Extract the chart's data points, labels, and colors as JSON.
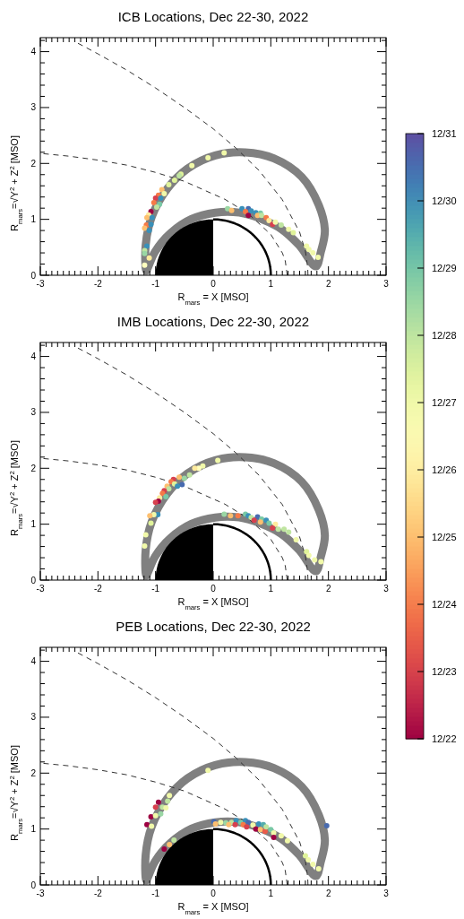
{
  "chart_data": [
    {
      "type": "scatter",
      "title": "ICB Locations, Dec 22-30, 2022",
      "xlabel": "R$_{mars}$ = X [MSO]",
      "ylabel": "R$_{mars}$=√Y$^{2}$ + Z$^{2}$ [MSO]",
      "xlim": [
        -3,
        3
      ],
      "ylim": [
        0,
        4.25
      ],
      "xticks": [
        -3,
        {
          "value": -2.9,
          "label": null
        },
        {
          "value": -2.8,
          "label": null
        },
        {
          "value": -2.7,
          "label": null
        },
        {
          "value": -2.6,
          "label": null
        },
        {
          "value": -2.5,
          "label": null
        },
        {
          "value": -2.4,
          "label": null
        },
        {
          "value": -2.3,
          "label": null
        },
        {
          "value": -2.2,
          "label": null
        },
        {
          "value": -2.1,
          "label": null
        },
        -2,
        {
          "value": -1.9,
          "label": null
        },
        {
          "value": -1.8,
          "label": null
        },
        {
          "value": -1.7,
          "label": null
        },
        {
          "value": -1.6,
          "label": null
        },
        {
          "value": -1.5,
          "label": null
        },
        {
          "value": -1.4,
          "label": null
        },
        {
          "value": -1.3,
          "label": null
        },
        {
          "value": -1.2,
          "label": null
        },
        {
          "value": -1.1,
          "label": null
        },
        -1,
        {
          "value": -0.9,
          "label": null
        },
        {
          "value": -0.8,
          "label": null
        },
        {
          "value": -0.7,
          "label": null
        },
        {
          "value": -0.6,
          "label": null
        },
        {
          "value": -0.5,
          "label": null
        },
        {
          "value": -0.4,
          "label": null
        },
        {
          "value": -0.3,
          "label": null
        },
        {
          "value": -0.2,
          "label": null
        },
        {
          "value": -0.1,
          "label": null
        },
        0,
        {
          "value": 0.1,
          "label": null
        },
        {
          "value": 0.2,
          "label": null
        },
        {
          "value": 0.3,
          "label": null
        },
        {
          "value": 0.4,
          "label": null
        },
        {
          "value": 0.5,
          "label": null
        },
        {
          "value": 0.6,
          "label": null
        },
        {
          "value": 0.7,
          "label": null
        },
        {
          "value": 0.8,
          "label": null
        },
        {
          "value": 0.9,
          "label": null
        },
        1,
        {
          "value": 1.1,
          "label": null
        },
        {
          "value": 1.2,
          "label": null
        },
        {
          "value": 1.3,
          "label": null
        },
        {
          "value": 1.4,
          "label": null
        },
        {
          "value": 1.5,
          "label": null
        },
        {
          "value": 1.6,
          "label": null
        },
        {
          "value": 1.7,
          "label": null
        },
        {
          "value": 1.8,
          "label": null
        },
        {
          "value": 1.9,
          "label": null
        },
        2,
        {
          "value": 2.1,
          "label": null
        },
        {
          "value": 2.2,
          "label": null
        },
        {
          "value": 2.3,
          "label": null
        },
        {
          "value": 2.4,
          "label": null
        },
        {
          "value": 2.5,
          "label": null
        },
        {
          "value": 2.6,
          "label": null
        },
        {
          "value": 2.7,
          "label": null
        },
        {
          "value": 2.8,
          "label": null
        },
        {
          "value": 2.9,
          "label": null
        },
        3
      ],
      "yticks": [
        0,
        {
          "value": 0.2,
          "label": null
        },
        {
          "value": 0.4,
          "label": null
        },
        {
          "value": 0.6,
          "label": null
        },
        {
          "value": 0.8,
          "label": null
        },
        1,
        {
          "value": 1.2,
          "label": null
        },
        {
          "value": 1.4,
          "label": null
        },
        {
          "value": 1.6,
          "label": null
        },
        {
          "value": 1.8,
          "label": null
        },
        2,
        {
          "value": 2.2,
          "label": null
        },
        {
          "value": 2.4,
          "label": null
        },
        {
          "value": 2.6,
          "label": null
        },
        {
          "value": 2.8,
          "label": null
        },
        3,
        {
          "value": 3.2,
          "label": null
        },
        {
          "value": 3.4,
          "label": null
        },
        {
          "value": 3.6,
          "label": null
        },
        {
          "value": 3.8,
          "label": null
        },
        4,
        {
          "value": 4.2,
          "label": null
        }
      ],
      "clim": [
        22,
        31
      ],
      "cticks": [
        {
          "value": 22,
          "label": "12/22"
        },
        {
          "value": 23,
          "label": "12/23"
        },
        {
          "value": 24,
          "label": "12/24"
        },
        {
          "value": 25,
          "label": "12/25"
        },
        {
          "value": 26,
          "label": "12/26"
        },
        {
          "value": 27,
          "label": "12/27"
        },
        {
          "value": 28,
          "label": "12/28"
        },
        {
          "value": 29,
          "label": "12/29"
        },
        {
          "value": 30,
          "label": "12/30"
        },
        {
          "value": 31,
          "label": "12/31"
        }
      ],
      "series": [
        {
          "type": "line",
          "color": "#333333",
          "line_style": "dashed",
          "x": [
            1.645,
            1.64,
            1.6,
            1.5,
            1.2,
            0.8,
            0.4,
            0,
            -0.5,
            -1,
            -1.5,
            -2,
            -2.4
          ],
          "values": [
            0,
            0.14,
            0.43,
            0.77,
            1.35,
            1.87,
            2.27,
            2.62,
            3.0,
            3.35,
            3.67,
            3.96,
            4.18
          ]
        },
        {
          "type": "line",
          "color": "#333333",
          "line_style": "dashed",
          "x": [
            1.285,
            1.25,
            1.2,
            1.0,
            0.6,
            0.2,
            -0.5,
            -1,
            -1.5,
            -2,
            -2.5,
            -3
          ],
          "values": [
            0,
            0.26,
            0.4,
            0.73,
            1.11,
            1.36,
            1.68,
            1.84,
            1.97,
            2.06,
            2.13,
            2.18
          ]
        },
        {
          "marker": "circle",
          "x": [
            0.19,
            -0.09,
            -0.37,
            -0.56,
            -0.59,
            -0.67,
            -0.77,
            -0.89,
            -0.85,
            -0.95,
            -1.0,
            -0.91,
            -1.03,
            -0.93,
            -0.98,
            -1.08,
            -1.12,
            -1.15,
            -1.06,
            -1.16,
            -1.19,
            -1.08,
            -1.11,
            -1.15,
            -1.19,
            -1.19,
            -1.11,
            -1.19,
            0.25,
            0.32,
            0.5,
            0.61,
            0.66,
            0.56,
            0.74,
            0.82,
            0.77,
            0.61,
            0.84,
            0.92,
            0.97,
            1.03,
            1.08,
            1.18,
            1.31,
            1.39,
            1.62,
            1.66,
            1.73,
            1.82
          ],
          "values": [
            2.19,
            2.1,
            1.96,
            1.81,
            1.78,
            1.7,
            1.62,
            1.53,
            1.46,
            1.43,
            1.38,
            1.38,
            1.3,
            1.27,
            1.22,
            1.14,
            1.08,
            1.03,
            1.03,
            0.9,
            0.84,
            0.91,
            0.8,
            0.52,
            0.44,
            0.39,
            0.31,
            0.18,
            1.19,
            1.16,
            1.19,
            1.19,
            1.15,
            1.14,
            1.12,
            1.11,
            1.07,
            1.07,
            1.07,
            1.03,
            0.98,
            0.91,
            0.95,
            0.9,
            0.82,
            0.76,
            0.52,
            0.46,
            0.4,
            0.32
          ],
          "colors": [
            "#f1f9a9",
            "#f1f9a9",
            "#f1f9a9",
            "#e0f39a",
            "#bfe5a0",
            "#e0f39a",
            "#e0f39a",
            "#fdbf6f",
            "#f1f9a9",
            "#f67a47",
            "#d7404e",
            "#3990b9",
            "#f67a47",
            "#79c9a5",
            "#bfe5a0",
            "#9e0142",
            "#feeb9d",
            "#fdbf6f",
            "#3990b9",
            "#f67a47",
            "#fdbf6f",
            "#3990b9",
            "#3990b9",
            "#3990b9",
            "#bfe5a0",
            "#9ad7a4",
            "#feeb9d",
            "#ffffbf",
            "#9ad7a4",
            "#fdbf6f",
            "#3990b9",
            "#486bb0",
            "#3990b9",
            "#f67a47",
            "#3990b9",
            "#79c9a5",
            "#fdbf6f",
            "#9e0142",
            "#bfe5a0",
            "#f67a47",
            "#feeb9d",
            "#d7404e",
            "#f1f9a9",
            "#bfe5a0",
            "#f1f9a9",
            "#e0f39a",
            "#f1f9a9",
            "#f1f9a9",
            "#f1f9a9",
            "#f1f9a9"
          ]
        }
      ]
    },
    {
      "type": "scatter",
      "title": "IMB Locations, Dec 22-30, 2022",
      "xlabel": "R$_{mars}$ = X [MSO]",
      "ylabel": "R$_{mars}$=√Y$^{2}$ + Z$^{2}$ [MSO]",
      "xlim": [
        -3,
        3
      ],
      "ylim": [
        0,
        4.25
      ],
      "xticks": [
        -3,
        {
          "value": -2.9,
          "label": null
        },
        {
          "value": -2.8,
          "label": null
        },
        {
          "value": -2.7,
          "label": null
        },
        {
          "value": -2.6,
          "label": null
        },
        {
          "value": -2.5,
          "label": null
        },
        {
          "value": -2.4,
          "label": null
        },
        {
          "value": -2.3,
          "label": null
        },
        {
          "value": -2.2,
          "label": null
        },
        {
          "value": -2.1,
          "label": null
        },
        -2,
        {
          "value": -1.9,
          "label": null
        },
        {
          "value": -1.8,
          "label": null
        },
        {
          "value": -1.7,
          "label": null
        },
        {
          "value": -1.6,
          "label": null
        },
        {
          "value": -1.5,
          "label": null
        },
        {
          "value": -1.4,
          "label": null
        },
        {
          "value": -1.3,
          "label": null
        },
        {
          "value": -1.2,
          "label": null
        },
        {
          "value": -1.1,
          "label": null
        },
        -1,
        {
          "value": -0.9,
          "label": null
        },
        {
          "value": -0.8,
          "label": null
        },
        {
          "value": -0.7,
          "label": null
        },
        {
          "value": -0.6,
          "label": null
        },
        {
          "value": -0.5,
          "label": null
        },
        {
          "value": -0.4,
          "label": null
        },
        {
          "value": -0.3,
          "label": null
        },
        {
          "value": -0.2,
          "label": null
        },
        {
          "value": -0.1,
          "label": null
        },
        0,
        {
          "value": 0.1,
          "label": null
        },
        {
          "value": 0.2,
          "label": null
        },
        {
          "value": 0.3,
          "label": null
        },
        {
          "value": 0.4,
          "label": null
        },
        {
          "value": 0.5,
          "label": null
        },
        {
          "value": 0.6,
          "label": null
        },
        {
          "value": 0.7,
          "label": null
        },
        {
          "value": 0.8,
          "label": null
        },
        {
          "value": 0.9,
          "label": null
        },
        1,
        {
          "value": 1.1,
          "label": null
        },
        {
          "value": 1.2,
          "label": null
        },
        {
          "value": 1.3,
          "label": null
        },
        {
          "value": 1.4,
          "label": null
        },
        {
          "value": 1.5,
          "label": null
        },
        {
          "value": 1.6,
          "label": null
        },
        {
          "value": 1.7,
          "label": null
        },
        {
          "value": 1.8,
          "label": null
        },
        {
          "value": 1.9,
          "label": null
        },
        2,
        {
          "value": 2.1,
          "label": null
        },
        {
          "value": 2.2,
          "label": null
        },
        {
          "value": 2.3,
          "label": null
        },
        {
          "value": 2.4,
          "label": null
        },
        {
          "value": 2.5,
          "label": null
        },
        {
          "value": 2.6,
          "label": null
        },
        {
          "value": 2.7,
          "label": null
        },
        {
          "value": 2.8,
          "label": null
        },
        {
          "value": 2.9,
          "label": null
        },
        3
      ],
      "yticks": [
        0,
        {
          "value": 0.2,
          "label": null
        },
        {
          "value": 0.4,
          "label": null
        },
        {
          "value": 0.6,
          "label": null
        },
        {
          "value": 0.8,
          "label": null
        },
        1,
        {
          "value": 1.2,
          "label": null
        },
        {
          "value": 1.4,
          "label": null
        },
        {
          "value": 1.6,
          "label": null
        },
        {
          "value": 1.8,
          "label": null
        },
        2,
        {
          "value": 2.2,
          "label": null
        },
        {
          "value": 2.4,
          "label": null
        },
        {
          "value": 2.6,
          "label": null
        },
        {
          "value": 2.8,
          "label": null
        },
        3,
        {
          "value": 3.2,
          "label": null
        },
        {
          "value": 3.4,
          "label": null
        },
        {
          "value": 3.6,
          "label": null
        },
        {
          "value": 3.8,
          "label": null
        },
        4,
        {
          "value": 4.2,
          "label": null
        }
      ],
      "series": [
        {
          "type": "line",
          "color": "#333333",
          "line_style": "dashed",
          "x": [
            1.645,
            1.64,
            1.6,
            1.5,
            1.2,
            0.8,
            0.4,
            0,
            -0.5,
            -1,
            -1.5,
            -2,
            -2.4
          ],
          "values": [
            0,
            0.14,
            0.43,
            0.77,
            1.35,
            1.87,
            2.27,
            2.62,
            3.0,
            3.35,
            3.67,
            3.96,
            4.18
          ]
        },
        {
          "type": "line",
          "color": "#333333",
          "line_style": "dashed",
          "x": [
            1.285,
            1.25,
            1.2,
            1.0,
            0.6,
            0.2,
            -0.5,
            -1,
            -1.5,
            -2,
            -2.5,
            -3
          ],
          "values": [
            0,
            0.26,
            0.4,
            0.73,
            1.11,
            1.36,
            1.68,
            1.84,
            1.97,
            2.06,
            2.13,
            2.18
          ]
        },
        {
          "marker": "circle",
          "x": [
            0.08,
            -0.18,
            -0.25,
            -0.32,
            -0.41,
            -0.5,
            -0.59,
            -0.69,
            -0.73,
            -0.67,
            -0.54,
            -0.62,
            -0.8,
            -0.77,
            -0.85,
            -0.88,
            -0.82,
            -0.93,
            -0.95,
            -1.0,
            -0.96,
            -1.03,
            -1.1,
            -1.08,
            -1.17,
            -1.19,
            0.19,
            0.3,
            0.43,
            0.56,
            0.61,
            0.66,
            0.77,
            0.84,
            0.92,
            0.71,
            0.82,
            0.97,
            1.08,
            1.03,
            1.13,
            1.23,
            1.31,
            1.44,
            1.62,
            1.66,
            1.76,
            1.87
          ],
          "values": [
            2.14,
            2.04,
            2.0,
            2.0,
            1.88,
            1.82,
            1.84,
            1.8,
            1.76,
            1.72,
            1.71,
            1.68,
            1.68,
            1.63,
            1.6,
            1.55,
            1.49,
            1.47,
            1.41,
            1.39,
            1.17,
            1.17,
            1.15,
            1.02,
            0.81,
            0.61,
            1.18,
            1.15,
            1.15,
            1.18,
            1.15,
            1.12,
            1.13,
            1.09,
            1.07,
            1.07,
            1.04,
            1.02,
            1.0,
            0.93,
            0.91,
            0.91,
            0.86,
            0.72,
            0.51,
            0.44,
            0.36,
            0.33
          ],
          "colors": [
            "#f1f9a9",
            "#f1f9a9",
            "#ffffbf",
            "#feeb9d",
            "#bfe5a0",
            "#9ad7a4",
            "#fdbf6f",
            "#d7404e",
            "#f67a47",
            "#e0f39a",
            "#486bb0",
            "#3990b9",
            "#fdbf6f",
            "#bfe5a0",
            "#d7404e",
            "#f67a47",
            "#79c9a5",
            "#feeb9d",
            "#9e0142",
            "#d7404e",
            "#3990b9",
            "#f1f9a9",
            "#fdbf6f",
            "#e0f39a",
            "#f1f9a9",
            "#f1f9a9",
            "#9ad7a4",
            "#fdbf6f",
            "#f67a47",
            "#79c9a5",
            "#3990b9",
            "#bfe5a0",
            "#486bb0",
            "#79c9a5",
            "#3990b9",
            "#d7404e",
            "#fdbf6f",
            "#79c9a5",
            "#feeb9d",
            "#d7404e",
            "#bfe5a0",
            "#bfe5a0",
            "#bfe5a0",
            "#f1f9a9",
            "#e0f39a",
            "#f1f9a9",
            "#f1f9a9",
            "#f1f9a9"
          ]
        }
      ]
    },
    {
      "type": "scatter",
      "title": "PEB Locations, Dec 22-30, 2022",
      "xlabel": "R$_{mars}$ = X [MSO]",
      "ylabel": "R$_{mars}$=√Y$^{2}$ + Z$^{2}$ [MSO]",
      "xlim": [
        -3,
        3
      ],
      "ylim": [
        0,
        4.25
      ],
      "xticks": [
        -3,
        {
          "value": -2.9,
          "label": null
        },
        {
          "value": -2.8,
          "label": null
        },
        {
          "value": -2.7,
          "label": null
        },
        {
          "value": -2.6,
          "label": null
        },
        {
          "value": -2.5,
          "label": null
        },
        {
          "value": -2.4,
          "label": null
        },
        {
          "value": -2.3,
          "label": null
        },
        {
          "value": -2.2,
          "label": null
        },
        {
          "value": -2.1,
          "label": null
        },
        -2,
        {
          "value": -1.9,
          "label": null
        },
        {
          "value": -1.8,
          "label": null
        },
        {
          "value": -1.7,
          "label": null
        },
        {
          "value": -1.6,
          "label": null
        },
        {
          "value": -1.5,
          "label": null
        },
        {
          "value": -1.4,
          "label": null
        },
        {
          "value": -1.3,
          "label": null
        },
        {
          "value": -1.2,
          "label": null
        },
        {
          "value": -1.1,
          "label": null
        },
        -1,
        {
          "value": -0.9,
          "label": null
        },
        {
          "value": -0.8,
          "label": null
        },
        {
          "value": -0.7,
          "label": null
        },
        {
          "value": -0.6,
          "label": null
        },
        {
          "value": -0.5,
          "label": null
        },
        {
          "value": -0.4,
          "label": null
        },
        {
          "value": -0.3,
          "label": null
        },
        {
          "value": -0.2,
          "label": null
        },
        {
          "value": -0.1,
          "label": null
        },
        0,
        {
          "value": 0.1,
          "label": null
        },
        {
          "value": 0.2,
          "label": null
        },
        {
          "value": 0.3,
          "label": null
        },
        {
          "value": 0.4,
          "label": null
        },
        {
          "value": 0.5,
          "label": null
        },
        {
          "value": 0.6,
          "label": null
        },
        {
          "value": 0.7,
          "label": null
        },
        {
          "value": 0.8,
          "label": null
        },
        {
          "value": 0.9,
          "label": null
        },
        1,
        {
          "value": 1.1,
          "label": null
        },
        {
          "value": 1.2,
          "label": null
        },
        {
          "value": 1.3,
          "label": null
        },
        {
          "value": 1.4,
          "label": null
        },
        {
          "value": 1.5,
          "label": null
        },
        {
          "value": 1.6,
          "label": null
        },
        {
          "value": 1.7,
          "label": null
        },
        {
          "value": 1.8,
          "label": null
        },
        {
          "value": 1.9,
          "label": null
        },
        2,
        {
          "value": 2.1,
          "label": null
        },
        {
          "value": 2.2,
          "label": null
        },
        {
          "value": 2.3,
          "label": null
        },
        {
          "value": 2.4,
          "label": null
        },
        {
          "value": 2.5,
          "label": null
        },
        {
          "value": 2.6,
          "label": null
        },
        {
          "value": 2.7,
          "label": null
        },
        {
          "value": 2.8,
          "label": null
        },
        {
          "value": 2.9,
          "label": null
        },
        3
      ],
      "yticks": [
        0,
        {
          "value": 0.2,
          "label": null
        },
        {
          "value": 0.4,
          "label": null
        },
        {
          "value": 0.6,
          "label": null
        },
        {
          "value": 0.8,
          "label": null
        },
        1,
        {
          "value": 1.2,
          "label": null
        },
        {
          "value": 1.4,
          "label": null
        },
        {
          "value": 1.6,
          "label": null
        },
        {
          "value": 1.8,
          "label": null
        },
        2,
        {
          "value": 2.2,
          "label": null
        },
        {
          "value": 2.4,
          "label": null
        },
        {
          "value": 2.6,
          "label": null
        },
        {
          "value": 2.8,
          "label": null
        },
        3,
        {
          "value": 3.2,
          "label": null
        },
        {
          "value": 3.4,
          "label": null
        },
        {
          "value": 3.6,
          "label": null
        },
        {
          "value": 3.8,
          "label": null
        },
        4,
        {
          "value": 4.2,
          "label": null
        }
      ],
      "series": [
        {
          "type": "line",
          "color": "#333333",
          "line_style": "dashed",
          "x": [
            1.645,
            1.64,
            1.6,
            1.5,
            1.2,
            0.8,
            0.4,
            0,
            -0.5,
            -1,
            -1.5,
            -2,
            -2.4
          ],
          "values": [
            0,
            0.14,
            0.43,
            0.77,
            1.35,
            1.87,
            2.27,
            2.62,
            3.0,
            3.35,
            3.67,
            3.96,
            4.18
          ]
        },
        {
          "type": "line",
          "color": "#333333",
          "line_style": "dashed",
          "x": [
            1.285,
            1.25,
            1.2,
            1.0,
            0.6,
            0.2,
            -0.5,
            -1,
            -1.5,
            -2,
            -2.5,
            -3
          ],
          "values": [
            0,
            0.26,
            0.4,
            0.73,
            1.11,
            1.36,
            1.68,
            1.84,
            1.97,
            2.06,
            2.13,
            2.18
          ]
        },
        {
          "marker": "circle",
          "x": [
            -0.09,
            -0.76,
            -0.79,
            -0.95,
            -0.88,
            -1.0,
            -0.82,
            -0.91,
            -1.08,
            -1.0,
            -1.15,
            -1.07,
            -0.68,
            -0.76,
            -0.85,
            1.97,
            0.01,
            0.13,
            0.04,
            0.22,
            0.32,
            0.4,
            0.27,
            0.38,
            0.48,
            0.56,
            0.61,
            0.52,
            0.58,
            0.69,
            0.79,
            0.87,
            0.74,
            0.82,
            0.9,
            0.92,
            1.0,
            1.05,
            1.05,
            1.18,
            1.29,
            1.6,
            1.65,
            1.73,
            1.83
          ],
          "values": [
            2.05,
            1.6,
            1.5,
            1.48,
            1.39,
            1.39,
            1.38,
            1.27,
            1.22,
            1.24,
            1.08,
            1.05,
            0.8,
            0.72,
            0.64,
            1.06,
            1.13,
            1.12,
            1.09,
            1.11,
            1.12,
            1.15,
            1.08,
            1.08,
            1.12,
            1.15,
            1.12,
            1.08,
            1.04,
            1.07,
            1.09,
            1.08,
            1.0,
            0.99,
            0.96,
            1.04,
            0.99,
            0.93,
            0.85,
            0.88,
            0.79,
            0.52,
            0.45,
            0.37,
            0.29
          ],
          "colors": [
            "#f1f9a9",
            "#f1f9a9",
            "#bfe5a0",
            "#9e0142",
            "#bfe5a0",
            "#d7404e",
            "#f1f9a9",
            "#9ad7a4",
            "#9e0142",
            "#f1f9a9",
            "#9e0142",
            "#f1f9a9",
            "#bfe5a0",
            "#fdbf6f",
            "#9e0142",
            "#486bb0",
            "#486bb0",
            "#f1f9a9",
            "#fdbf6f",
            "#9ad7a4",
            "#bfe5a0",
            "#3990b9",
            "#fdbf6f",
            "#d7404e",
            "#79c9a5",
            "#3990b9",
            "#486bb0",
            "#f67a47",
            "#d7404e",
            "#f1f9a9",
            "#3990b9",
            "#54adac",
            "#9e0142",
            "#fdbf6f",
            "#ea5a48",
            "#bfe5a0",
            "#79c9a5",
            "#f1f9a9",
            "#9e0142",
            "#f1f9a9",
            "#f1f9a9",
            "#e0f39a",
            "#f1f9a9",
            "#f1f9a9",
            "#f1f9a9"
          ]
        }
      ]
    }
  ]
}
